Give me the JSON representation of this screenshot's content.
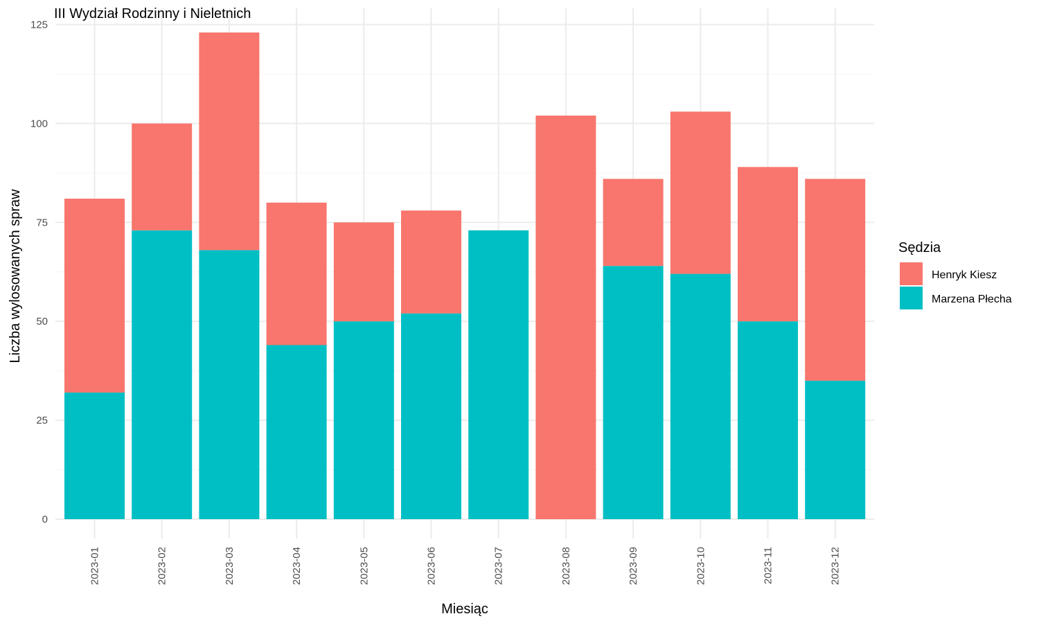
{
  "chart_data": {
    "type": "bar",
    "stacked": true,
    "title": "III Wydział Rodzinny i Nieletnich",
    "xlabel": "Miesiąc",
    "ylabel": "Liczba wylosowanych spraw",
    "categories": [
      "2023-01",
      "2023-02",
      "2023-03",
      "2023-04",
      "2023-05",
      "2023-06",
      "2023-07",
      "2023-08",
      "2023-09",
      "2023-10",
      "2023-11",
      "2023-12"
    ],
    "series": [
      {
        "name": "Marzena Płecha",
        "color": "#00BFC4",
        "values": [
          32,
          73,
          68,
          44,
          50,
          52,
          73,
          0,
          64,
          62,
          50,
          35
        ]
      },
      {
        "name": "Henryk Kiesz",
        "color": "#F8766D",
        "values": [
          49,
          27,
          55,
          36,
          25,
          26,
          0,
          102,
          22,
          41,
          39,
          51
        ]
      }
    ],
    "ylim": [
      0,
      125
    ],
    "yticks": [
      0,
      25,
      50,
      75,
      100,
      125
    ],
    "grid": true,
    "legend": {
      "title": "Sędzia",
      "position": "right",
      "order": [
        "Henryk Kiesz",
        "Marzena Płecha"
      ]
    }
  }
}
